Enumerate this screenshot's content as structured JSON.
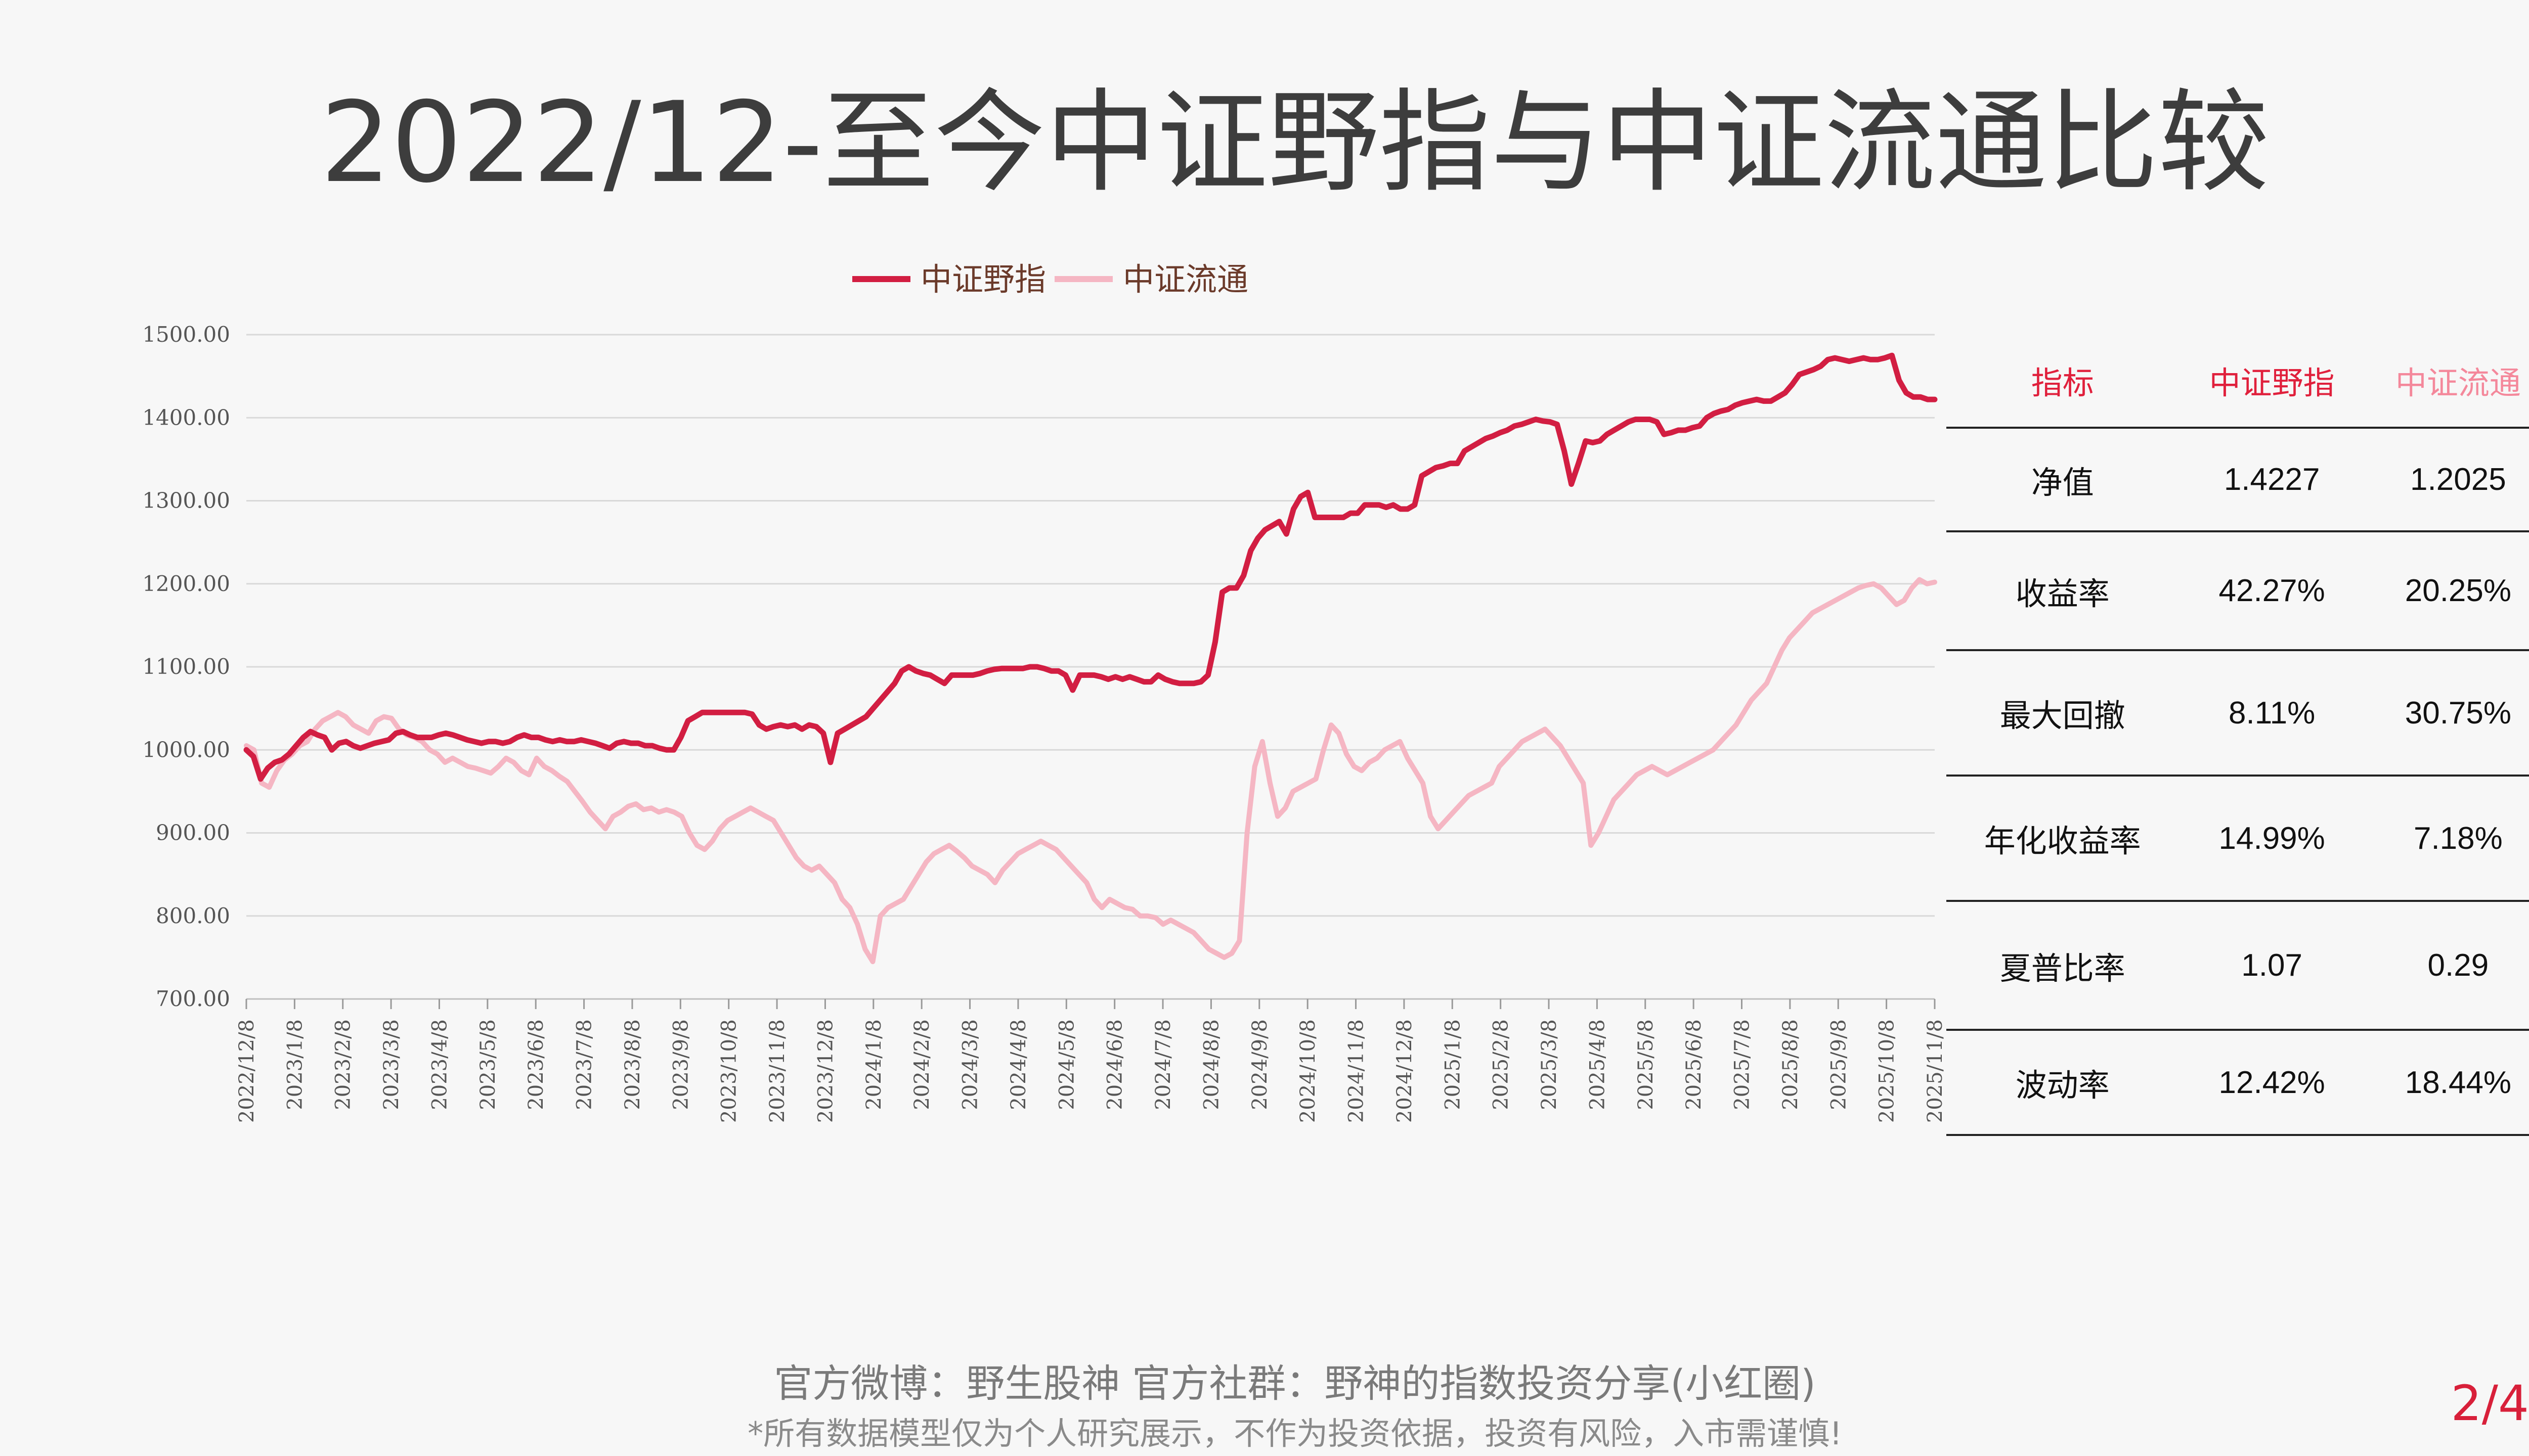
{
  "page": {
    "title": "2022/12-至今中证野指与中证流通比较",
    "footer_line1": "官方微博：野生股神  官方社群：野神的指数投资分享(小红圈)",
    "footer_line2": "*所有数据模型仅为个人研究展示，不作为投资依据，投资有风险，入市需谨慎!",
    "page_number": "2/4"
  },
  "colors": {
    "series1": "#d21e42",
    "series2": "#f5b6c3",
    "grid": "#d9d9d9",
    "header_red": "#e0203c",
    "header_pink": "#f4889b"
  },
  "chart_data": {
    "type": "line",
    "ylim": [
      700,
      1500
    ],
    "yticks": [
      "1500.00",
      "1400.00",
      "1300.00",
      "1200.00",
      "1100.00",
      "1000.00",
      "900.00",
      "800.00",
      "700.00"
    ],
    "xticks": [
      "2022/12/8",
      "2023/1/8",
      "2023/2/8",
      "2023/3/8",
      "2023/4/8",
      "2023/5/8",
      "2023/6/8",
      "2023/7/8",
      "2023/8/8",
      "2023/9/8",
      "2023/10/8",
      "2023/11/8",
      "2023/12/8",
      "2024/1/8",
      "2024/2/8",
      "2024/3/8",
      "2024/4/8",
      "2024/5/8",
      "2024/6/8",
      "2024/7/8",
      "2024/8/8",
      "2024/9/8",
      "2024/10/8",
      "2024/11/8",
      "2024/12/8",
      "2025/1/8",
      "2025/2/8",
      "2025/3/8",
      "2025/4/8",
      "2025/5/8",
      "2025/6/8",
      "2025/7/8",
      "2025/8/8",
      "2025/9/8",
      "2025/10/8",
      "2025/11/8"
    ],
    "legend_position": "top-center",
    "series": [
      {
        "name": "中证野指",
        "values": [
          1000,
          992,
          965,
          978,
          985,
          988,
          995,
          1005,
          1015,
          1022,
          1018,
          1015,
          1000,
          1008,
          1010,
          1005,
          1002,
          1005,
          1008,
          1010,
          1012,
          1020,
          1022,
          1018,
          1015,
          1015,
          1015,
          1018,
          1020,
          1018,
          1015,
          1012,
          1010,
          1008,
          1010,
          1010,
          1008,
          1010,
          1015,
          1018,
          1015,
          1015,
          1012,
          1010,
          1012,
          1010,
          1010,
          1012,
          1010,
          1008,
          1005,
          1002,
          1008,
          1010,
          1008,
          1008,
          1005,
          1005,
          1002,
          1000,
          1000,
          1015,
          1035,
          1040,
          1045,
          1045,
          1045,
          1045,
          1045,
          1045,
          1045,
          1043,
          1030,
          1025,
          1028,
          1030,
          1028,
          1030,
          1025,
          1030,
          1028,
          1020,
          985,
          1020,
          1025,
          1030,
          1035,
          1040,
          1050,
          1060,
          1070,
          1080,
          1095,
          1100,
          1095,
          1092,
          1090,
          1085,
          1080,
          1090,
          1090,
          1090,
          1090,
          1092,
          1095,
          1097,
          1098,
          1098,
          1098,
          1098,
          1100,
          1100,
          1098,
          1095,
          1095,
          1090,
          1072,
          1090,
          1090,
          1090,
          1088,
          1085,
          1088,
          1085,
          1088,
          1085,
          1082,
          1082,
          1090,
          1085,
          1082,
          1080,
          1080,
          1080,
          1082,
          1090,
          1130,
          1190,
          1195,
          1195,
          1210,
          1240,
          1255,
          1265,
          1270,
          1275,
          1260,
          1290,
          1305,
          1310,
          1280,
          1280,
          1280,
          1280,
          1280,
          1285,
          1285,
          1295,
          1295,
          1295,
          1292,
          1295,
          1290,
          1290,
          1295,
          1330,
          1335,
          1340,
          1342,
          1345,
          1345,
          1360,
          1365,
          1370,
          1375,
          1378,
          1382,
          1385,
          1390,
          1392,
          1395,
          1398,
          1396,
          1395,
          1392,
          1360,
          1320,
          1345,
          1372,
          1370,
          1372,
          1380,
          1385,
          1390,
          1395,
          1398,
          1398,
          1398,
          1395,
          1380,
          1382,
          1385,
          1385,
          1388,
          1390,
          1400,
          1405,
          1408,
          1410,
          1415,
          1418,
          1420,
          1422,
          1420,
          1420,
          1425,
          1430,
          1440,
          1452,
          1455,
          1458,
          1462,
          1470,
          1472,
          1470,
          1468,
          1470,
          1472,
          1470,
          1470,
          1472,
          1475,
          1445,
          1430,
          1425,
          1425,
          1422,
          1422
        ]
      },
      {
        "name": "中证流通",
        "values": [
          1005,
          1000,
          960,
          955,
          975,
          988,
          995,
          1005,
          1010,
          1025,
          1035,
          1040,
          1045,
          1040,
          1030,
          1025,
          1020,
          1035,
          1040,
          1038,
          1025,
          1018,
          1015,
          1010,
          1000,
          995,
          985,
          990,
          985,
          980,
          978,
          975,
          972,
          980,
          990,
          985,
          975,
          970,
          990,
          980,
          975,
          968,
          962,
          950,
          938,
          925,
          915,
          905,
          920,
          925,
          932,
          935,
          928,
          930,
          925,
          928,
          925,
          920,
          900,
          885,
          880,
          890,
          905,
          915,
          920,
          925,
          930,
          925,
          920,
          915,
          900,
          885,
          870,
          860,
          855,
          860,
          850,
          840,
          820,
          810,
          790,
          760,
          745,
          800,
          810,
          815,
          820,
          835,
          850,
          865,
          875,
          880,
          885,
          878,
          870,
          860,
          855,
          850,
          840,
          855,
          865,
          875,
          880,
          885,
          890,
          885,
          880,
          870,
          860,
          850,
          840,
          820,
          810,
          820,
          815,
          810,
          808,
          800,
          800,
          798,
          790,
          795,
          790,
          785,
          780,
          770,
          760,
          755,
          750,
          755,
          770,
          900,
          980,
          1010,
          960,
          920,
          930,
          950,
          955,
          960,
          965,
          1000,
          1030,
          1020,
          995,
          980,
          975,
          985,
          990,
          1000,
          1005,
          1010,
          990,
          975,
          960,
          920,
          905,
          915,
          925,
          935,
          945,
          950,
          955,
          960,
          980,
          990,
          1000,
          1010,
          1015,
          1020,
          1025,
          1015,
          1005,
          990,
          975,
          960,
          885,
          900,
          920,
          940,
          950,
          960,
          970,
          975,
          980,
          975,
          970,
          975,
          980,
          985,
          990,
          995,
          1000,
          1010,
          1020,
          1030,
          1045,
          1060,
          1070,
          1080,
          1100,
          1120,
          1135,
          1145,
          1155,
          1165,
          1170,
          1175,
          1180,
          1185,
          1190,
          1195,
          1198,
          1200,
          1195,
          1185,
          1175,
          1180,
          1195,
          1205,
          1200,
          1202
        ]
      }
    ]
  },
  "table": {
    "headers": [
      "指标",
      "中证野指",
      "中证流通"
    ],
    "rows": [
      [
        "净值",
        "1.4227",
        "1.2025"
      ],
      [
        "收益率",
        "42.27%",
        "20.25%"
      ],
      [
        "最大回撤",
        "8.11%",
        "30.75%"
      ],
      [
        "年化收益率",
        "14.99%",
        "7.18%"
      ],
      [
        "夏普比率",
        "1.07",
        "0.29"
      ],
      [
        "波动率",
        "12.42%",
        "18.44%"
      ]
    ]
  }
}
